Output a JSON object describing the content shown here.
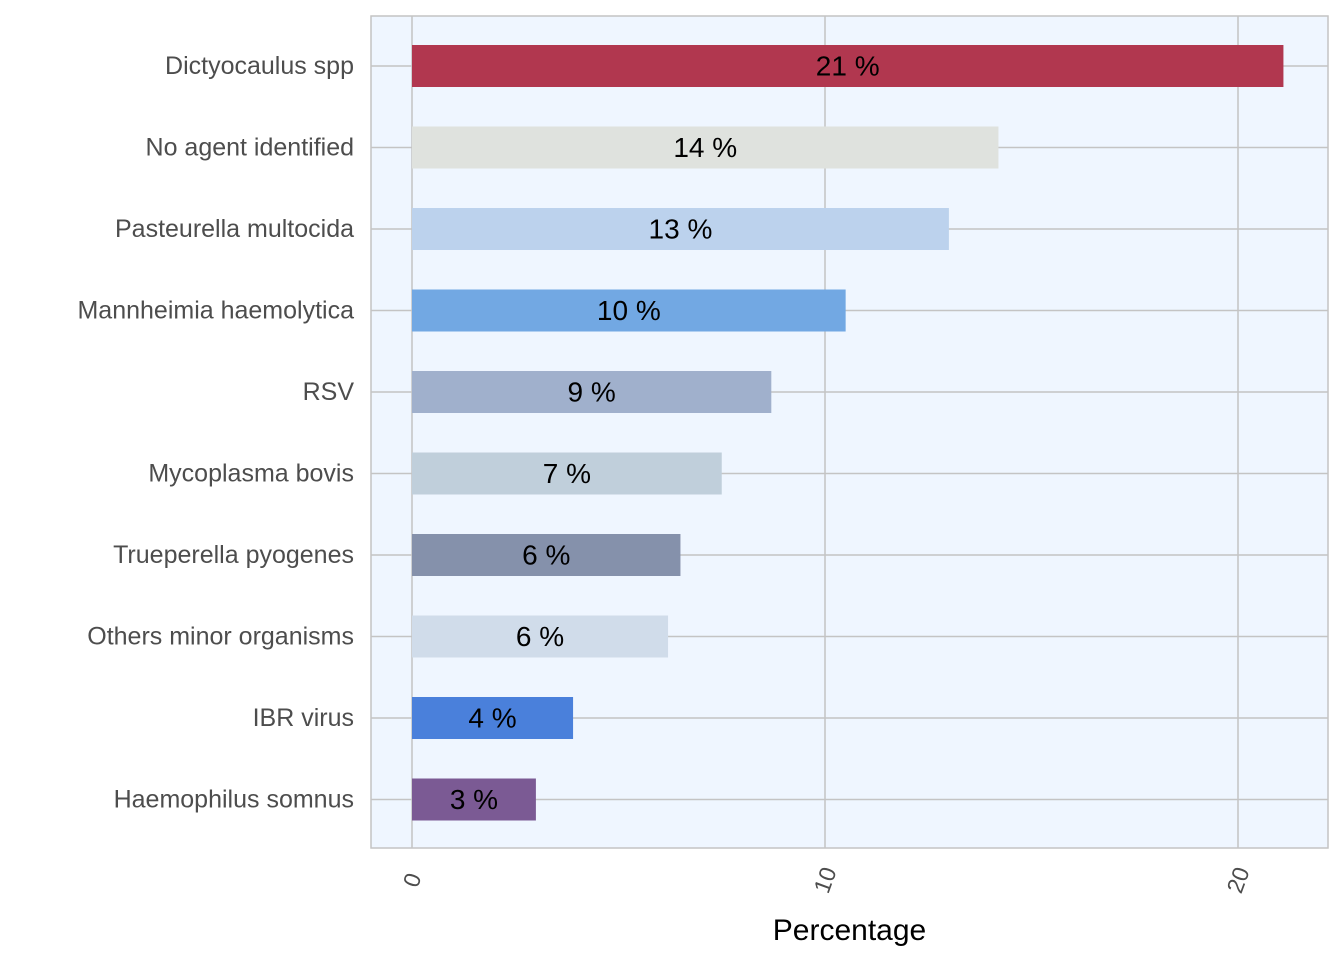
{
  "chart_data": {
    "type": "bar",
    "orientation": "horizontal",
    "title": "",
    "xlabel": "Percentage",
    "ylabel": "",
    "xlim": [
      0,
      22
    ],
    "xticks": [
      0,
      10,
      20
    ],
    "grid": true,
    "legend": "none",
    "background_color": "#eff6ff",
    "grid_color": "#c4c4c4",
    "categories": [
      "Dictyocaulus spp",
      "No agent identified",
      "Pasteurella multocida",
      "Mannheimia haemolytica",
      "RSV",
      "Mycoplasma bovis",
      "Trueperella pyogenes",
      "Others minor organisms",
      "IBR virus",
      "Haemophilus somnus"
    ],
    "values": [
      21.1,
      14.2,
      13.0,
      10.5,
      8.7,
      7.5,
      6.5,
      6.2,
      3.9,
      3.0
    ],
    "labels": [
      "21 %",
      "14 %",
      "13 %",
      "10 %",
      "9 %",
      "7 %",
      "6 %",
      "6 %",
      "4 %",
      "3 %"
    ],
    "colors": [
      "#b1374f",
      "#dfe2de",
      "#bcd2ed",
      "#72a8e3",
      "#a0b0cc",
      "#c0cfdb",
      "#8591ab",
      "#d0dcea",
      "#4a80db",
      "#7b5a94"
    ]
  }
}
